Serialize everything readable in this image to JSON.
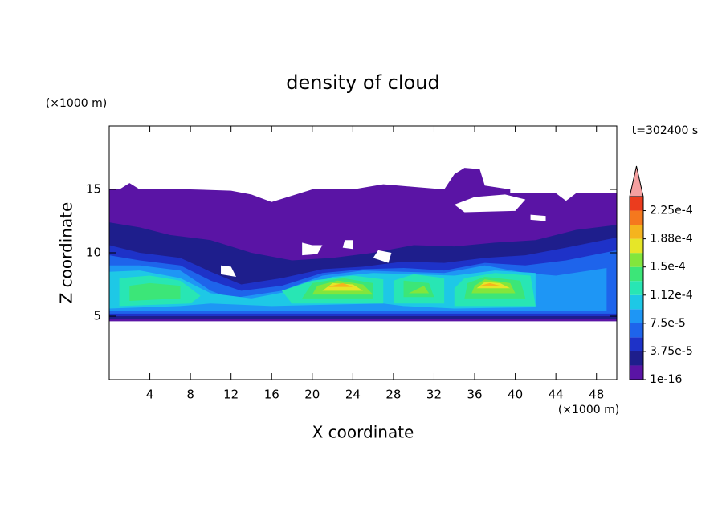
{
  "chart_data": {
    "type": "contour",
    "title": "density of cloud",
    "x_label": "X coordinate",
    "y_label": "Z coordinate",
    "x_unit": "(×1000 m)",
    "y_unit": "(×1000 m)",
    "time_label": "t=302400 s",
    "xlim": [
      0,
      50
    ],
    "ylim": [
      0,
      20
    ],
    "xticks": [
      4,
      8,
      12,
      16,
      20,
      24,
      28,
      32,
      36,
      40,
      44,
      48
    ],
    "yticks": [
      5,
      10,
      15
    ],
    "clim": [
      1e-16,
      0.00024375
    ],
    "cticks": [
      {
        "value": 1e-16,
        "label": "1e-16"
      },
      {
        "value": 3.75e-05,
        "label": "3.75e-5"
      },
      {
        "value": 7.5e-05,
        "label": "7.5e-5"
      },
      {
        "value": 0.0001125,
        "label": "1.12e-4"
      },
      {
        "value": 0.00015,
        "label": "1.5e-4"
      },
      {
        "value": 0.0001875,
        "label": "1.88e-4"
      },
      {
        "value": 0.000225,
        "label": "2.25e-4"
      }
    ],
    "colors": [
      "#5a14a5",
      "#1e1e8c",
      "#1e32c8",
      "#1e64eb",
      "#1e96f5",
      "#1ec8e6",
      "#28e6b4",
      "#3ce678",
      "#82e63c",
      "#e6e628",
      "#f5b41e",
      "#f5781e",
      "#eb3c1e"
    ],
    "extend_color": "#f4a0a0"
  }
}
